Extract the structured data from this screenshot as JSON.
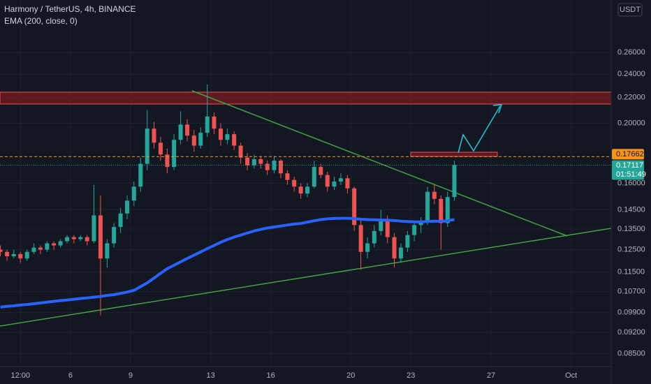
{
  "chart_data": {
    "type": "candlestick",
    "title": "Harmony / TetherUS, 4h, BINANCE",
    "currency": "USDT",
    "x": [
      2.5,
      2.83,
      3.17,
      3.5,
      3.83,
      4.17,
      4.5,
      4.83,
      5.17,
      5.5,
      5.83,
      6.17,
      6.5,
      6.83,
      7.17,
      7.5,
      7.83,
      8.17,
      8.5,
      8.83,
      9.17,
      9.5,
      9.83,
      10.17,
      10.5,
      10.83,
      11.17,
      11.5,
      11.83,
      12.17,
      12.5,
      12.83,
      13.17,
      13.5,
      13.83,
      14.17,
      14.5,
      14.83,
      15.17,
      15.5,
      15.83,
      16.17,
      16.5,
      16.83,
      17.17,
      17.5,
      17.83,
      18.17,
      18.5,
      18.83,
      19.17,
      19.5,
      19.83,
      20.17,
      20.5,
      20.83,
      21.17,
      21.5,
      21.83,
      22.17,
      22.5,
      22.83,
      23.17,
      23.5,
      23.83,
      24.17,
      24.5,
      24.83,
      25.17
    ],
    "open": [
      0.125,
      0.124,
      0.122,
      0.123,
      0.121,
      0.124,
      0.126,
      0.125,
      0.128,
      0.127,
      0.129,
      0.131,
      0.13,
      0.131,
      0.129,
      0.142,
      0.121,
      0.128,
      0.136,
      0.143,
      0.15,
      0.158,
      0.172,
      0.196,
      0.186,
      0.178,
      0.17,
      0.188,
      0.199,
      0.191,
      0.184,
      0.193,
      0.205,
      0.196,
      0.188,
      0.192,
      0.184,
      0.176,
      0.171,
      0.175,
      0.172,
      0.168,
      0.174,
      0.166,
      0.162,
      0.158,
      0.154,
      0.158,
      0.17,
      0.165,
      0.158,
      0.161,
      0.163,
      0.157,
      0.137,
      0.124,
      0.128,
      0.134,
      0.14,
      0.131,
      0.121,
      0.126,
      0.132,
      0.137,
      0.139,
      0.155,
      0.151,
      0.138,
      0.152
    ],
    "high": [
      0.127,
      0.125,
      0.125,
      0.124,
      0.125,
      0.128,
      0.127,
      0.129,
      0.129,
      0.13,
      0.132,
      0.132,
      0.132,
      0.132,
      0.159,
      0.153,
      0.13,
      0.138,
      0.146,
      0.153,
      0.161,
      0.176,
      0.21,
      0.201,
      0.19,
      0.182,
      0.192,
      0.209,
      0.203,
      0.195,
      0.197,
      0.231,
      0.208,
      0.2,
      0.196,
      0.194,
      0.186,
      0.179,
      0.178,
      0.177,
      0.174,
      0.177,
      0.175,
      0.168,
      0.164,
      0.16,
      0.16,
      0.174,
      0.172,
      0.167,
      0.164,
      0.166,
      0.165,
      0.158,
      0.14,
      0.131,
      0.137,
      0.145,
      0.142,
      0.133,
      0.128,
      0.134,
      0.139,
      0.141,
      0.158,
      0.159,
      0.153,
      0.155,
      0.174
    ],
    "low": [
      0.122,
      0.12,
      0.121,
      0.119,
      0.12,
      0.123,
      0.123,
      0.124,
      0.125,
      0.126,
      0.128,
      0.128,
      0.129,
      0.127,
      0.128,
      0.098,
      0.117,
      0.126,
      0.133,
      0.14,
      0.147,
      0.155,
      0.168,
      0.182,
      0.174,
      0.166,
      0.168,
      0.185,
      0.187,
      0.18,
      0.182,
      0.19,
      0.192,
      0.184,
      0.185,
      0.181,
      0.172,
      0.168,
      0.169,
      0.169,
      0.165,
      0.166,
      0.163,
      0.159,
      0.155,
      0.151,
      0.152,
      0.157,
      0.163,
      0.155,
      0.156,
      0.159,
      0.154,
      0.134,
      0.116,
      0.121,
      0.126,
      0.132,
      0.128,
      0.117,
      0.119,
      0.124,
      0.129,
      0.133,
      0.137,
      0.148,
      0.125,
      0.136,
      0.15
    ],
    "close": [
      0.124,
      0.122,
      0.123,
      0.121,
      0.124,
      0.126,
      0.125,
      0.128,
      0.127,
      0.129,
      0.131,
      0.13,
      0.131,
      0.129,
      0.142,
      0.121,
      0.128,
      0.136,
      0.143,
      0.15,
      0.158,
      0.172,
      0.196,
      0.186,
      0.178,
      0.17,
      0.188,
      0.199,
      0.191,
      0.184,
      0.193,
      0.205,
      0.196,
      0.188,
      0.192,
      0.184,
      0.176,
      0.171,
      0.175,
      0.172,
      0.168,
      0.174,
      0.166,
      0.162,
      0.158,
      0.154,
      0.158,
      0.17,
      0.165,
      0.158,
      0.161,
      0.163,
      0.157,
      0.137,
      0.124,
      0.128,
      0.134,
      0.14,
      0.131,
      0.121,
      0.126,
      0.132,
      0.137,
      0.139,
      0.155,
      0.151,
      0.138,
      0.152,
      0.17117
    ],
    "up_color": "#26a69a",
    "down_color": "#ef5350",
    "overlays": [
      {
        "name": "EMA (200, close, 0)",
        "color": "#2962ff",
        "values": [
          0.101,
          0.1013,
          0.1015,
          0.1018,
          0.102,
          0.1023,
          0.1026,
          0.1029,
          0.1032,
          0.1035,
          0.1037,
          0.104,
          0.1043,
          0.1045,
          0.1048,
          0.1051,
          0.1055,
          0.1058,
          0.1063,
          0.1068,
          0.1075,
          0.109,
          0.1105,
          0.1125,
          0.1145,
          0.1165,
          0.118,
          0.1195,
          0.121,
          0.1225,
          0.124,
          0.1255,
          0.127,
          0.1285,
          0.1298,
          0.131,
          0.132,
          0.133,
          0.134,
          0.1348,
          0.1355,
          0.136,
          0.1365,
          0.137,
          0.1375,
          0.1378,
          0.1385,
          0.1392,
          0.1398,
          0.1402,
          0.1404,
          0.1405,
          0.1405,
          0.1403,
          0.14,
          0.1398,
          0.1397,
          0.1396,
          0.1395,
          0.1393,
          0.139,
          0.1388,
          0.1387,
          0.1386,
          0.1388,
          0.139,
          0.1389,
          0.1392,
          0.1398
        ]
      }
    ],
    "xlim": [
      2.48,
      33.0
    ],
    "xticks": [
      {
        "value": 3.5,
        "label": "12:00"
      },
      6,
      9,
      13,
      16,
      20,
      23,
      27,
      {
        "value": 31,
        "label": "Oct"
      }
    ],
    "ylim": [
      0.081,
      0.316
    ],
    "log_scale": true,
    "grid": true,
    "yticks": [
      {
        "value": 0.085,
        "label": "0.08500"
      },
      {
        "value": 0.092,
        "label": "0.09200"
      },
      {
        "value": 0.099,
        "label": "0.09900"
      },
      {
        "value": 0.107,
        "label": "0.10700"
      },
      {
        "value": 0.115,
        "label": "0.11500"
      },
      {
        "value": 0.125,
        "label": "0.12500"
      },
      {
        "value": 0.135,
        "label": "0.13500"
      },
      {
        "value": 0.145,
        "label": "0.14500"
      },
      {
        "value": 0.16,
        "label": "0.16000"
      },
      {
        "value": 0.2,
        "label": "0.20000"
      },
      {
        "value": 0.22,
        "label": "0.22000"
      },
      {
        "value": 0.24,
        "label": "0.24000"
      },
      {
        "value": 0.26,
        "label": "0.26000"
      }
    ],
    "level": 0.17662,
    "level_color": "#f7931a",
    "last_price": 0.17117,
    "last_price_color": "#26a69a",
    "countdown": "01:51:49"
  }
}
